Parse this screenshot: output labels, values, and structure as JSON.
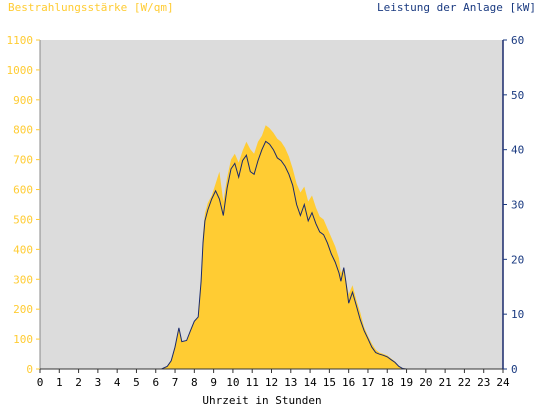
{
  "colors": {
    "plot_bg": "#dcdcdc",
    "area": "#ffcc33",
    "line": "#1a2a6c",
    "left_axis_text": "#ffcc33",
    "right_axis_text": "#1a3a80",
    "bottom_axis_text": "#000000"
  },
  "chart_data": {
    "type": "area",
    "title_left": "Bestrahlungsstärke [W/qm]",
    "title_right": "Leistung der Anlage [kW]",
    "xlabel": "Uhrzeit in Stunden",
    "xlim": [
      0,
      24
    ],
    "x_ticks": [
      "0",
      "1",
      "2",
      "3",
      "4",
      "5",
      "6",
      "7",
      "8",
      "9",
      "10",
      "11",
      "12",
      "13",
      "14",
      "15",
      "16",
      "17",
      "18",
      "19",
      "20",
      "21",
      "22",
      "23",
      "24"
    ],
    "y_left_lim": [
      0,
      1100
    ],
    "y_left_ticks": [
      "0",
      "100",
      "200",
      "300",
      "400",
      "500",
      "600",
      "700",
      "800",
      "900",
      "1000",
      "1100"
    ],
    "y_right_lim": [
      0,
      60
    ],
    "y_right_ticks": [
      "0",
      "10",
      "20",
      "30",
      "40",
      "50",
      "60"
    ],
    "grid": false,
    "series": [
      {
        "name": "Bestrahlungsstärke [W/qm]",
        "axis": "left",
        "style": "area",
        "points": [
          [
            0,
            0
          ],
          [
            6.3,
            0
          ],
          [
            6.6,
            10
          ],
          [
            6.8,
            30
          ],
          [
            7.0,
            80
          ],
          [
            7.2,
            130
          ],
          [
            7.35,
            90
          ],
          [
            7.6,
            95
          ],
          [
            7.8,
            130
          ],
          [
            8.0,
            160
          ],
          [
            8.2,
            175
          ],
          [
            8.35,
            300
          ],
          [
            8.45,
            450
          ],
          [
            8.55,
            520
          ],
          [
            8.7,
            555
          ],
          [
            8.9,
            580
          ],
          [
            9.1,
            620
          ],
          [
            9.3,
            660
          ],
          [
            9.5,
            560
          ],
          [
            9.7,
            640
          ],
          [
            9.9,
            700
          ],
          [
            10.1,
            720
          ],
          [
            10.3,
            690
          ],
          [
            10.5,
            730
          ],
          [
            10.7,
            760
          ],
          [
            10.9,
            735
          ],
          [
            11.1,
            720
          ],
          [
            11.3,
            760
          ],
          [
            11.5,
            780
          ],
          [
            11.7,
            815
          ],
          [
            11.9,
            805
          ],
          [
            12.1,
            790
          ],
          [
            12.3,
            770
          ],
          [
            12.5,
            760
          ],
          [
            12.7,
            740
          ],
          [
            12.9,
            710
          ],
          [
            13.1,
            670
          ],
          [
            13.3,
            620
          ],
          [
            13.5,
            590
          ],
          [
            13.7,
            610
          ],
          [
            13.9,
            560
          ],
          [
            14.1,
            580
          ],
          [
            14.3,
            540
          ],
          [
            14.5,
            510
          ],
          [
            14.7,
            500
          ],
          [
            14.9,
            470
          ],
          [
            15.1,
            440
          ],
          [
            15.3,
            410
          ],
          [
            15.5,
            370
          ],
          [
            15.6,
            320
          ],
          [
            15.75,
            340
          ],
          [
            15.85,
            300
          ],
          [
            16.0,
            250
          ],
          [
            16.2,
            280
          ],
          [
            16.4,
            230
          ],
          [
            16.6,
            190
          ],
          [
            16.8,
            140
          ],
          [
            17.0,
            110
          ],
          [
            17.2,
            85
          ],
          [
            17.4,
            65
          ],
          [
            17.6,
            55
          ],
          [
            17.8,
            50
          ],
          [
            18.0,
            45
          ],
          [
            18.2,
            35
          ],
          [
            18.4,
            25
          ],
          [
            18.6,
            10
          ],
          [
            18.8,
            3
          ],
          [
            19.0,
            0
          ],
          [
            24,
            0
          ]
        ]
      },
      {
        "name": "Leistung der Anlage [kW]",
        "axis": "right",
        "style": "line",
        "points": [
          [
            0,
            0
          ],
          [
            6.3,
            0
          ],
          [
            6.6,
            0.5
          ],
          [
            6.8,
            1.5
          ],
          [
            7.0,
            4
          ],
          [
            7.2,
            7.5
          ],
          [
            7.35,
            5
          ],
          [
            7.6,
            5.2
          ],
          [
            7.8,
            7
          ],
          [
            8.0,
            8.7
          ],
          [
            8.2,
            9.5
          ],
          [
            8.35,
            16
          ],
          [
            8.45,
            23
          ],
          [
            8.55,
            27
          ],
          [
            8.7,
            29
          ],
          [
            8.9,
            31
          ],
          [
            9.1,
            32.5
          ],
          [
            9.3,
            31
          ],
          [
            9.5,
            28
          ],
          [
            9.7,
            33
          ],
          [
            9.9,
            36.5
          ],
          [
            10.1,
            37.5
          ],
          [
            10.3,
            35
          ],
          [
            10.5,
            38
          ],
          [
            10.7,
            39
          ],
          [
            10.9,
            36
          ],
          [
            11.1,
            35.5
          ],
          [
            11.3,
            38
          ],
          [
            11.5,
            40
          ],
          [
            11.7,
            41.5
          ],
          [
            11.9,
            41
          ],
          [
            12.1,
            40
          ],
          [
            12.3,
            38.5
          ],
          [
            12.5,
            38
          ],
          [
            12.7,
            37
          ],
          [
            12.9,
            35.5
          ],
          [
            13.1,
            33.5
          ],
          [
            13.3,
            30
          ],
          [
            13.5,
            28
          ],
          [
            13.7,
            30
          ],
          [
            13.9,
            27
          ],
          [
            14.1,
            28.5
          ],
          [
            14.3,
            26.5
          ],
          [
            14.5,
            25
          ],
          [
            14.7,
            24.5
          ],
          [
            14.9,
            23
          ],
          [
            15.1,
            21
          ],
          [
            15.3,
            19.5
          ],
          [
            15.5,
            17.5
          ],
          [
            15.6,
            16
          ],
          [
            15.75,
            18.5
          ],
          [
            15.85,
            16
          ],
          [
            16.0,
            12
          ],
          [
            16.2,
            14
          ],
          [
            16.4,
            11.5
          ],
          [
            16.6,
            9
          ],
          [
            16.8,
            7
          ],
          [
            17.0,
            5.5
          ],
          [
            17.2,
            4
          ],
          [
            17.4,
            3
          ],
          [
            17.6,
            2.7
          ],
          [
            17.8,
            2.5
          ],
          [
            18.0,
            2.2
          ],
          [
            18.2,
            1.7
          ],
          [
            18.4,
            1.2
          ],
          [
            18.6,
            0.5
          ],
          [
            18.8,
            0.1
          ],
          [
            19.0,
            0
          ],
          [
            24,
            0
          ]
        ]
      }
    ]
  }
}
